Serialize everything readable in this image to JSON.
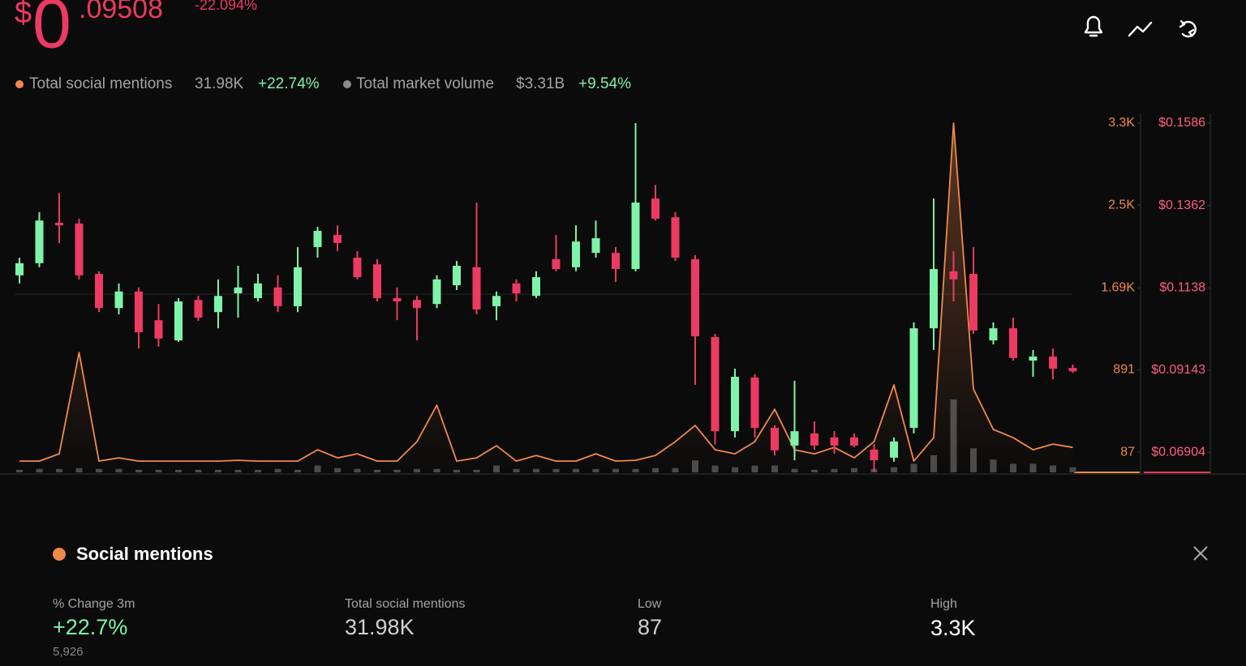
{
  "header": {
    "currency": "$",
    "price_int": "0",
    "price_dec": ".09508",
    "change": "-22.094%"
  },
  "legend": [
    {
      "name": "Total social mentions",
      "value": "31.98K",
      "change": "+22.74%"
    },
    {
      "name": "Total market volume",
      "value": "$3.31B",
      "change": "+9.54%"
    }
  ],
  "chart_data": {
    "type": "candlestick",
    "up_color": "#7ff3a9",
    "down_color": "#ec3a62",
    "ylim": [
      0.0636,
      0.1586
    ],
    "yticks": [
      {
        "value": 0.1586,
        "label": "$0.1586"
      },
      {
        "value": 0.1362,
        "label": "$0.1362"
      },
      {
        "value": 0.1138,
        "label": "$0.1138"
      },
      {
        "value": 0.09143,
        "label": "$0.09143"
      },
      {
        "value": 0.06904,
        "label": "$0.06904"
      }
    ],
    "y2lim": [
      -110,
      3300
    ],
    "y2ticks": [
      {
        "value": 3300,
        "label": "3.3K"
      },
      {
        "value": 2500,
        "label": "2.5K"
      },
      {
        "value": 1690,
        "label": "1.69K"
      },
      891,
      87
    ],
    "ohlc": [
      [
        0.1172,
        0.122,
        0.115,
        0.1205
      ],
      [
        0.1205,
        0.1344,
        0.1194,
        0.1321
      ],
      [
        0.1315,
        0.1396,
        0.126,
        0.1308
      ],
      [
        0.1313,
        0.1326,
        0.1161,
        0.1172
      ],
      [
        0.1176,
        0.1183,
        0.1072,
        0.1083
      ],
      [
        0.1083,
        0.115,
        0.1066,
        0.1128
      ],
      [
        0.1128,
        0.1139,
        0.0973,
        0.1017
      ],
      [
        0.105,
        0.1094,
        0.0978,
        0.1
      ],
      [
        0.0995,
        0.111,
        0.0991,
        0.1101
      ],
      [
        0.1105,
        0.1116,
        0.1048,
        0.1057
      ],
      [
        0.1072,
        0.1161,
        0.1028,
        0.1116
      ],
      [
        0.1123,
        0.1198,
        0.1057,
        0.1139
      ],
      [
        0.111,
        0.1176,
        0.1101,
        0.115
      ],
      [
        0.1139,
        0.1172,
        0.1072,
        0.1088
      ],
      [
        0.1088,
        0.1249,
        0.1072,
        0.1194
      ],
      [
        0.1249,
        0.1304,
        0.122,
        0.1293
      ],
      [
        0.1282,
        0.1308,
        0.1238,
        0.126
      ],
      [
        0.122,
        0.1238,
        0.1161,
        0.1167
      ],
      [
        0.1202,
        0.1216,
        0.1101,
        0.111
      ],
      [
        0.111,
        0.1139,
        0.105,
        0.1101
      ],
      [
        0.1105,
        0.1116,
        0.0995,
        0.1083
      ],
      [
        0.1094,
        0.1172,
        0.1083,
        0.1161
      ],
      [
        0.1145,
        0.1211,
        0.1132,
        0.1198
      ],
      [
        0.1194,
        0.137,
        0.1066,
        0.1079
      ],
      [
        0.1088,
        0.1128,
        0.105,
        0.1116
      ],
      [
        0.115,
        0.1161,
        0.1101,
        0.1123
      ],
      [
        0.1116,
        0.1183,
        0.111,
        0.1167
      ],
      [
        0.1216,
        0.1282,
        0.1183,
        0.1189
      ],
      [
        0.1194,
        0.1308,
        0.1183,
        0.1264
      ],
      [
        0.1233,
        0.1321,
        0.122,
        0.1273
      ],
      [
        0.1233,
        0.1249,
        0.1154,
        0.1189
      ],
      [
        0.1189,
        0.1586,
        0.1183,
        0.137
      ],
      [
        0.1381,
        0.1418,
        0.1321,
        0.1326
      ],
      [
        0.133,
        0.1344,
        0.1211,
        0.122
      ],
      [
        0.1216,
        0.1227,
        0.0874,
        0.1006
      ],
      [
        0.1004,
        0.1013,
        0.0713,
        0.0748
      ],
      [
        0.0748,
        0.0918,
        0.0731,
        0.0896
      ],
      [
        0.0894,
        0.0903,
        0.0731,
        0.0757
      ],
      [
        0.0757,
        0.0764,
        0.0682,
        0.0696
      ],
      [
        0.0709,
        0.0885,
        0.0669,
        0.0748
      ],
      [
        0.0742,
        0.0775,
        0.0698,
        0.0709
      ],
      [
        0.0731,
        0.0748,
        0.0687,
        0.0709
      ],
      [
        0.0731,
        0.0742,
        0.0704,
        0.0709
      ],
      [
        0.0698,
        0.0713,
        0.0638,
        0.0669
      ],
      [
        0.0676,
        0.0731,
        0.0665,
        0.072
      ],
      [
        0.0757,
        0.1044,
        0.0742,
        0.1028
      ],
      [
        0.1028,
        0.1381,
        0.0969,
        0.1189
      ],
      [
        0.1183,
        0.1238,
        0.1101,
        0.1161
      ],
      [
        0.1176,
        0.1249,
        0.1013,
        0.1022
      ],
      [
        0.0995,
        0.1044,
        0.0984,
        0.1028
      ],
      [
        0.1028,
        0.1057,
        0.094,
        0.0947
      ],
      [
        0.094,
        0.0969,
        0.0896,
        0.0951
      ],
      [
        0.0951,
        0.0973,
        0.0889,
        0.0918
      ],
      [
        0.092,
        0.0929,
        0.0907,
        0.0911
      ]
    ],
    "mentions": {
      "axis": "y2",
      "color": "#f0894c",
      "values": [
        0,
        0,
        71,
        1060,
        0,
        32,
        0,
        0,
        0,
        0,
        0,
        8,
        0,
        0,
        0,
        111,
        32,
        71,
        0,
        0,
        190,
        546,
        0,
        32,
        150,
        0,
        55,
        0,
        0,
        71,
        0,
        8,
        55,
        190,
        348,
        111,
        71,
        190,
        506,
        111,
        71,
        134,
        32,
        190,
        744,
        0,
        229,
        3300,
        704,
        309,
        229,
        111,
        166,
        134
      ]
    },
    "volume": {
      "color": "#4a4a4a",
      "values": [
        3,
        4,
        4,
        5,
        4,
        4,
        3,
        3,
        3,
        3,
        3,
        3,
        3,
        4,
        3,
        8,
        5,
        4,
        3,
        3,
        4,
        4,
        3,
        3,
        8,
        4,
        4,
        4,
        4,
        4,
        4,
        4,
        5,
        5,
        14,
        8,
        6,
        8,
        8,
        4,
        3,
        4,
        5,
        4,
        6,
        10,
        20,
        85,
        28,
        15,
        10,
        10,
        8,
        6
      ]
    }
  },
  "panel": {
    "title": "Social mentions",
    "stats": [
      {
        "label": "% Change 3m",
        "value": "+22.7%",
        "sub": "5,926"
      },
      {
        "label": "Total social mentions",
        "value": "31.98K"
      },
      {
        "label": "Low",
        "value": "87"
      },
      {
        "label": "High",
        "value": "3.3K"
      }
    ]
  }
}
